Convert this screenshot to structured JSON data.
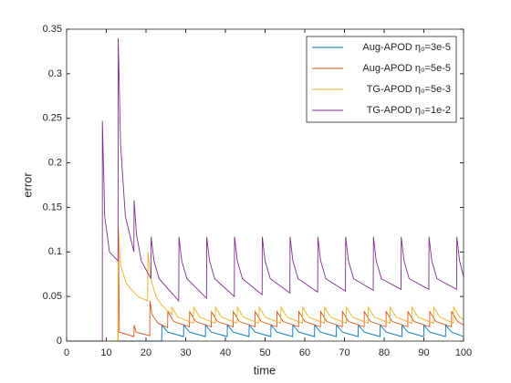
{
  "chart_data": {
    "type": "line",
    "xlabel": "time",
    "ylabel": "error",
    "xlim": [
      0,
      100
    ],
    "xticks": [
      0,
      10,
      20,
      30,
      40,
      50,
      60,
      70,
      80,
      90,
      100
    ],
    "ylim": [
      0,
      0.35
    ],
    "yticks": [
      0,
      0.05,
      0.1,
      0.15,
      0.2,
      0.25,
      0.3,
      0.35
    ],
    "legend": "northeast",
    "series": [
      {
        "name": "Aug-APOD η₀=3e-5",
        "color": "#0072BD",
        "x": [
          0,
          23.95,
          24,
          25.5,
          29.45,
          29.5,
          31,
          34.95,
          35,
          36.5,
          40.45,
          40.5,
          42,
          45.95,
          46,
          47.5,
          51.45,
          51.5,
          53,
          56.95,
          57,
          58.5,
          62.45,
          62.5,
          64,
          67.95,
          68,
          69.5,
          73.45,
          73.5,
          75,
          78.95,
          79,
          80.5,
          84.45,
          84.5,
          86,
          89.95,
          90,
          91.5,
          95.45,
          95.5,
          97,
          100
        ],
        "values": [
          0,
          0,
          0.018,
          0.01,
          0.005,
          0.018,
          0.01,
          0.005,
          0.018,
          0.01,
          0.005,
          0.018,
          0.01,
          0.005,
          0.018,
          0.01,
          0.005,
          0.018,
          0.01,
          0.005,
          0.018,
          0.01,
          0.005,
          0.018,
          0.01,
          0.005,
          0.018,
          0.01,
          0.005,
          0.018,
          0.01,
          0.005,
          0.018,
          0.01,
          0.005,
          0.018,
          0.01,
          0.005,
          0.018,
          0.01,
          0.005,
          0.018,
          0.01,
          0.005
        ]
      },
      {
        "name": "Aug-APOD η₀=5e-5",
        "color": "#D95319",
        "x": [
          0,
          12.95,
          13,
          13.3,
          16.95,
          17,
          17.5,
          20.95,
          21,
          21.5,
          23,
          25.45,
          25.5,
          27,
          30.95,
          31,
          32.5,
          36.45,
          36.5,
          38,
          41.95,
          42,
          43.5,
          47.45,
          47.5,
          49,
          52.95,
          53,
          54.5,
          58.45,
          58.5,
          60,
          63.95,
          64,
          65.5,
          69.45,
          69.5,
          71,
          74.95,
          75,
          76.5,
          80.45,
          80.5,
          82,
          85.95,
          86,
          87.5,
          91.45,
          91.5,
          93,
          96.95,
          97,
          98.5,
          100
        ],
        "values": [
          0,
          0,
          0.128,
          0.01,
          0.005,
          0.018,
          0.01,
          0.006,
          0.045,
          0.03,
          0.02,
          0.015,
          0.033,
          0.022,
          0.016,
          0.033,
          0.022,
          0.016,
          0.033,
          0.022,
          0.016,
          0.033,
          0.022,
          0.016,
          0.033,
          0.022,
          0.016,
          0.033,
          0.022,
          0.016,
          0.033,
          0.022,
          0.016,
          0.033,
          0.022,
          0.016,
          0.033,
          0.022,
          0.016,
          0.033,
          0.022,
          0.016,
          0.033,
          0.022,
          0.016,
          0.033,
          0.022,
          0.016,
          0.033,
          0.022,
          0.016,
          0.033,
          0.022,
          0.018
        ]
      },
      {
        "name": "TG-APOD η₀=5e-3",
        "color": "#EDB120",
        "x": [
          0,
          12.95,
          13,
          13.6,
          15,
          16.9,
          18,
          20.4,
          20.5,
          21.2,
          22.5,
          24,
          26.45,
          26.5,
          28,
          31.95,
          32,
          33.5,
          37.45,
          37.5,
          39,
          42.95,
          43,
          44.5,
          48.45,
          48.5,
          50,
          53.95,
          54,
          55.5,
          59.45,
          59.5,
          61,
          64.95,
          65,
          66.5,
          70.45,
          70.5,
          72,
          75.95,
          76,
          77.5,
          81.45,
          81.5,
          83,
          86.95,
          87,
          88.5,
          92.45,
          92.5,
          94,
          97.45,
          97.5,
          99,
          100
        ],
        "values": [
          0,
          0,
          0.13,
          0.085,
          0.065,
          0.055,
          0.05,
          0.045,
          0.1,
          0.07,
          0.05,
          0.04,
          0.03,
          0.038,
          0.027,
          0.02,
          0.038,
          0.027,
          0.02,
          0.038,
          0.027,
          0.02,
          0.038,
          0.027,
          0.02,
          0.038,
          0.027,
          0.02,
          0.038,
          0.027,
          0.02,
          0.038,
          0.027,
          0.02,
          0.038,
          0.027,
          0.02,
          0.038,
          0.027,
          0.02,
          0.038,
          0.027,
          0.02,
          0.038,
          0.027,
          0.02,
          0.038,
          0.027,
          0.02,
          0.038,
          0.027,
          0.02,
          0.038,
          0.027,
          0.024
        ]
      },
      {
        "name": "TG-APOD η₀=1e-2",
        "color": "#7E2F8E",
        "x": [
          0,
          9,
          9.01,
          9.6,
          10.8,
          12.95,
          13,
          13.6,
          14.8,
          16.95,
          17,
          17.6,
          18.8,
          21.25,
          21.3,
          22,
          23.3,
          28.25,
          28.3,
          29,
          30.3,
          35.25,
          35.3,
          36,
          37.3,
          42.25,
          42.3,
          43,
          44.3,
          49.25,
          49.3,
          50,
          51.3,
          56.25,
          56.3,
          57,
          58.3,
          63.25,
          63.3,
          64,
          65.3,
          70.25,
          70.3,
          71,
          72.3,
          77.25,
          77.3,
          78,
          79.3,
          84.25,
          84.3,
          85,
          86.3,
          91.25,
          91.3,
          92,
          93.3,
          98.25,
          98.3,
          99,
          100
        ],
        "values": [
          0,
          0,
          0.247,
          0.14,
          0.1,
          0.09,
          0.34,
          0.22,
          0.14,
          0.1,
          0.158,
          0.12,
          0.09,
          0.07,
          0.117,
          0.09,
          0.07,
          0.045,
          0.117,
          0.09,
          0.07,
          0.048,
          0.117,
          0.09,
          0.07,
          0.05,
          0.117,
          0.09,
          0.07,
          0.052,
          0.117,
          0.09,
          0.07,
          0.054,
          0.117,
          0.09,
          0.07,
          0.055,
          0.117,
          0.09,
          0.07,
          0.056,
          0.117,
          0.09,
          0.07,
          0.057,
          0.117,
          0.09,
          0.07,
          0.058,
          0.117,
          0.09,
          0.07,
          0.058,
          0.117,
          0.09,
          0.07,
          0.058,
          0.117,
          0.09,
          0.072
        ]
      }
    ]
  }
}
